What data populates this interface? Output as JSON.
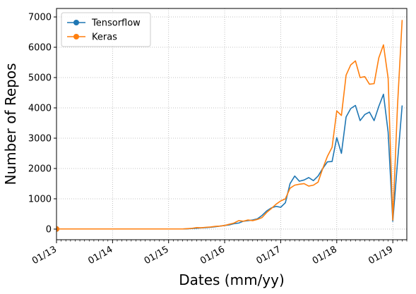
{
  "chart_data": {
    "type": "line",
    "xlabel": "Dates (mm/yy)",
    "ylabel": "Number of Repos",
    "x_ticks": [
      "01/13",
      "01/14",
      "01/15",
      "01/16",
      "01/17",
      "01/18",
      "01/19"
    ],
    "y_ticks": [
      0,
      1000,
      2000,
      3000,
      4000,
      5000,
      6000,
      7000
    ],
    "xlim": [
      "2013-01",
      "2019-04"
    ],
    "ylim": [
      -350,
      7280
    ],
    "grid": true,
    "legend_position": "top-left",
    "x": [
      "2013-01",
      "2013-02",
      "2013-03",
      "2013-04",
      "2013-05",
      "2013-06",
      "2013-07",
      "2013-08",
      "2013-09",
      "2013-10",
      "2013-11",
      "2013-12",
      "2014-01",
      "2014-02",
      "2014-03",
      "2014-04",
      "2014-05",
      "2014-06",
      "2014-07",
      "2014-08",
      "2014-09",
      "2014-10",
      "2014-11",
      "2014-12",
      "2015-01",
      "2015-02",
      "2015-03",
      "2015-04",
      "2015-05",
      "2015-06",
      "2015-07",
      "2015-08",
      "2015-09",
      "2015-10",
      "2015-11",
      "2015-12",
      "2016-01",
      "2016-02",
      "2016-03",
      "2016-04",
      "2016-05",
      "2016-06",
      "2016-07",
      "2016-08",
      "2016-09",
      "2016-10",
      "2016-11",
      "2016-12",
      "2017-01",
      "2017-02",
      "2017-03",
      "2017-04",
      "2017-05",
      "2017-06",
      "2017-07",
      "2017-08",
      "2017-09",
      "2017-10",
      "2017-11",
      "2017-12",
      "2018-01",
      "2018-02",
      "2018-03",
      "2018-04",
      "2018-05",
      "2018-06",
      "2018-07",
      "2018-08",
      "2018-09",
      "2018-10",
      "2018-11",
      "2018-12",
      "2019-01",
      "2019-02",
      "2019-03"
    ],
    "series": [
      {
        "name": "Tensorflow",
        "color": "#1f77b4",
        "values": [
          5,
          5,
          5,
          5,
          5,
          5,
          5,
          5,
          5,
          5,
          5,
          5,
          5,
          5,
          5,
          5,
          5,
          5,
          5,
          5,
          5,
          5,
          5,
          5,
          5,
          5,
          5,
          5,
          10,
          20,
          30,
          40,
          50,
          60,
          80,
          100,
          120,
          140,
          180,
          200,
          260,
          280,
          300,
          340,
          450,
          600,
          700,
          750,
          720,
          870,
          1500,
          1750,
          1580,
          1620,
          1700,
          1600,
          1750,
          2000,
          2220,
          2230,
          3020,
          2500,
          3700,
          3980,
          4080,
          3580,
          3780,
          3860,
          3580,
          4050,
          4450,
          3200,
          260,
          2200,
          4080
        ]
      },
      {
        "name": "Keras",
        "color": "#ff7f0e",
        "values": [
          5,
          5,
          5,
          5,
          5,
          5,
          5,
          5,
          5,
          5,
          5,
          5,
          5,
          5,
          5,
          5,
          5,
          5,
          5,
          5,
          5,
          5,
          5,
          5,
          5,
          5,
          5,
          5,
          15,
          25,
          50,
          45,
          60,
          70,
          90,
          100,
          120,
          160,
          200,
          280,
          260,
          300,
          280,
          320,
          380,
          550,
          680,
          820,
          930,
          1000,
          1350,
          1450,
          1480,
          1500,
          1420,
          1450,
          1550,
          2000,
          2400,
          2700,
          3900,
          3750,
          5080,
          5420,
          5550,
          5000,
          5030,
          4780,
          4800,
          5650,
          6080,
          4980,
          300,
          4050,
          6900
        ]
      }
    ]
  }
}
